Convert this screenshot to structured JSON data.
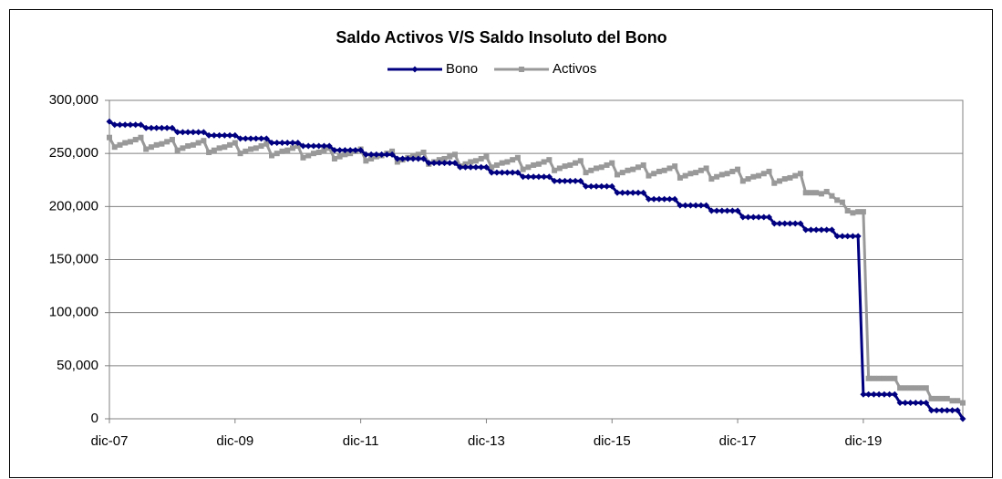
{
  "chart_data": {
    "type": "line",
    "title": "Saldo Activos V/S Saldo Insoluto del Bono",
    "legend": "top",
    "grid": true,
    "categories": [
      "dic-07",
      null,
      null,
      null,
      null,
      null,
      null,
      null,
      null,
      null,
      null,
      null,
      null,
      null,
      null,
      null,
      null,
      null,
      null,
      null,
      null,
      null,
      null,
      null,
      "dic-09",
      null,
      null,
      null,
      null,
      null,
      null,
      null,
      null,
      null,
      null,
      null,
      null,
      null,
      null,
      null,
      null,
      null,
      null,
      null,
      null,
      null,
      null,
      null,
      "dic-11",
      null,
      null,
      null,
      null,
      null,
      null,
      null,
      null,
      null,
      null,
      null,
      null,
      null,
      null,
      null,
      null,
      null,
      null,
      null,
      null,
      null,
      null,
      null,
      "dic-13",
      null,
      null,
      null,
      null,
      null,
      null,
      null,
      null,
      null,
      null,
      null,
      null,
      null,
      null,
      null,
      null,
      null,
      null,
      null,
      null,
      null,
      null,
      null,
      "dic-15",
      null,
      null,
      null,
      null,
      null,
      null,
      null,
      null,
      null,
      null,
      null,
      null,
      null,
      null,
      null,
      null,
      null,
      null,
      null,
      null,
      null,
      null,
      null,
      "dic-17",
      null,
      null,
      null,
      null,
      null,
      null,
      null,
      null,
      null,
      null,
      null,
      null,
      null,
      null,
      null,
      null,
      null,
      null,
      null,
      null,
      null,
      null,
      null,
      "dic-19",
      null,
      null,
      null,
      null,
      null,
      null,
      null,
      null,
      null,
      null,
      null,
      null,
      null,
      null,
      null,
      null,
      null,
      null,
      null
    ],
    "ylim": [
      0,
      300000
    ],
    "yticks": [
      0,
      {
        "value": 50000,
        "label": "50,000"
      },
      {
        "value": 100000,
        "label": "100,000"
      },
      {
        "value": 150000,
        "label": "150,000"
      },
      {
        "value": 200000,
        "label": "200,000"
      },
      {
        "value": 250000,
        "label": "250,000"
      },
      {
        "value": 300000,
        "label": "300,000"
      }
    ],
    "series": [
      {
        "name": "Bono",
        "color": "#000080",
        "marker": "diamond",
        "values": [
          280000,
          277000,
          277000,
          277000,
          277000,
          277000,
          277000,
          274000,
          274000,
          274000,
          274000,
          274000,
          274000,
          270000,
          270000,
          270000,
          270000,
          270000,
          270000,
          267000,
          267000,
          267000,
          267000,
          267000,
          267000,
          264000,
          264000,
          264000,
          264000,
          264000,
          264000,
          260000,
          260000,
          260000,
          260000,
          260000,
          260000,
          257000,
          257000,
          257000,
          257000,
          257000,
          257000,
          253000,
          253000,
          253000,
          253000,
          253000,
          253000,
          249000,
          249000,
          249000,
          249000,
          249000,
          249000,
          245000,
          245000,
          245000,
          245000,
          245000,
          245000,
          241000,
          241000,
          241000,
          241000,
          241000,
          241000,
          237000,
          237000,
          237000,
          237000,
          237000,
          237000,
          232000,
          232000,
          232000,
          232000,
          232000,
          232000,
          228000,
          228000,
          228000,
          228000,
          228000,
          228000,
          224000,
          224000,
          224000,
          224000,
          224000,
          224000,
          219000,
          219000,
          219000,
          219000,
          219000,
          219000,
          213000,
          213000,
          213000,
          213000,
          213000,
          213000,
          207000,
          207000,
          207000,
          207000,
          207000,
          207000,
          201000,
          201000,
          201000,
          201000,
          201000,
          201000,
          196000,
          196000,
          196000,
          196000,
          196000,
          196000,
          190000,
          190000,
          190000,
          190000,
          190000,
          190000,
          184000,
          184000,
          184000,
          184000,
          184000,
          184000,
          178000,
          178000,
          178000,
          178000,
          178000,
          178000,
          172000,
          172000,
          172000,
          172000,
          172000,
          23000,
          23000,
          23000,
          23000,
          23000,
          23000,
          23000,
          15000,
          15000,
          15000,
          15000,
          15000,
          15000,
          8000,
          8000,
          8000,
          8000,
          8000,
          8000,
          0
        ]
      },
      {
        "name": "Activos",
        "color": "#999999",
        "marker": "square",
        "values": [
          265000,
          256000,
          258000,
          260000,
          261000,
          263000,
          265000,
          254000,
          256000,
          258000,
          259000,
          261000,
          263000,
          253000,
          255000,
          257000,
          258000,
          260000,
          262000,
          251000,
          253000,
          255000,
          256000,
          258000,
          260000,
          250000,
          252000,
          254000,
          255000,
          257000,
          259000,
          248000,
          250000,
          252000,
          253000,
          255000,
          257000,
          246000,
          248000,
          250000,
          251000,
          253000,
          255000,
          245000,
          247000,
          249000,
          250000,
          252000,
          254000,
          243000,
          245000,
          247000,
          248000,
          250000,
          252000,
          242000,
          244000,
          246000,
          247000,
          249000,
          251000,
          240000,
          242000,
          244000,
          245000,
          247000,
          249000,
          238000,
          240000,
          242000,
          243000,
          245000,
          247000,
          237000,
          239000,
          241000,
          242000,
          244000,
          246000,
          235000,
          237000,
          239000,
          240000,
          242000,
          244000,
          234000,
          236000,
          238000,
          239000,
          241000,
          243000,
          232000,
          234000,
          236000,
          237000,
          239000,
          241000,
          230000,
          232000,
          234000,
          235000,
          237000,
          239000,
          229000,
          231000,
          233000,
          234000,
          236000,
          238000,
          227000,
          229000,
          231000,
          232000,
          234000,
          236000,
          226000,
          228000,
          230000,
          231000,
          233000,
          235000,
          224000,
          226000,
          228000,
          229000,
          231000,
          233000,
          222000,
          224000,
          226000,
          227000,
          229000,
          231000,
          213000,
          213000,
          213000,
          212000,
          214000,
          210000,
          206000,
          204000,
          196000,
          194000,
          195000,
          195000,
          38000,
          38000,
          38000,
          38000,
          38000,
          38000,
          29000,
          29000,
          29000,
          29000,
          29000,
          29000,
          19000,
          19000,
          19000,
          19000,
          17000,
          17000,
          15000
        ]
      }
    ]
  }
}
